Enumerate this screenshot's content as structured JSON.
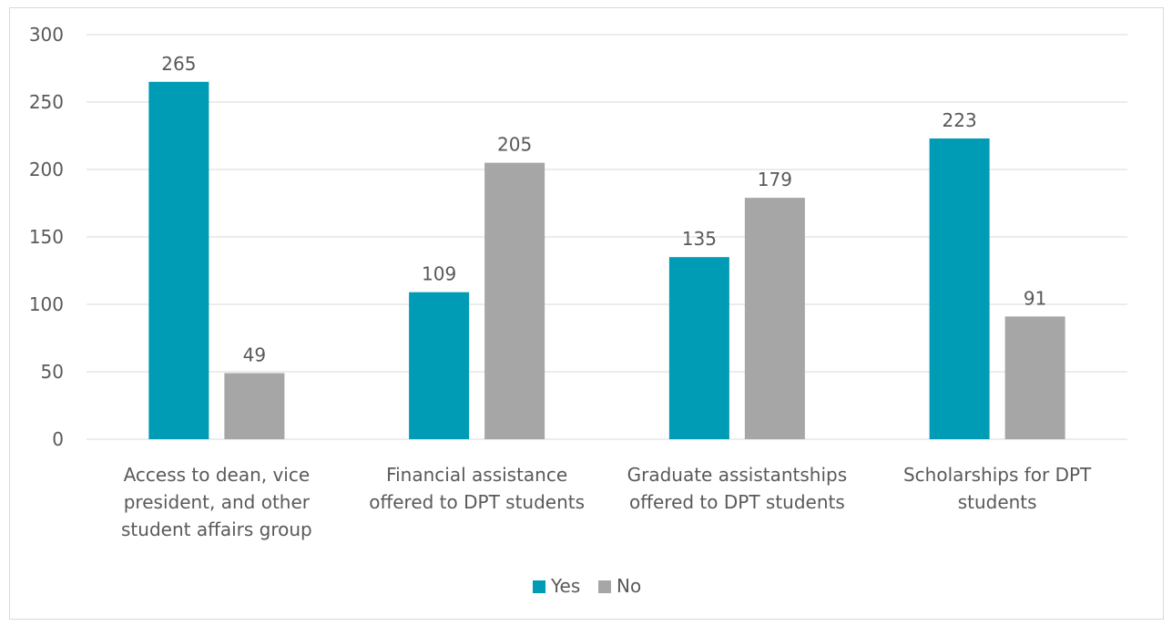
{
  "chart_data": {
    "type": "bar",
    "title": "",
    "xlabel": "",
    "ylabel": "",
    "ylim": [
      0,
      300
    ],
    "yticks": [
      0,
      50,
      100,
      150,
      200,
      250,
      300
    ],
    "grid": true,
    "legend_position": "bottom",
    "categories": [
      [
        "Access to dean, vice",
        "president, and other",
        "student affairs group"
      ],
      [
        "Financial assistance",
        "offered to DPT students"
      ],
      [
        "Graduate assistantships",
        "offered to DPT students"
      ],
      [
        "Scholarships for DPT",
        "students"
      ]
    ],
    "series": [
      {
        "name": "Yes",
        "color": "#009bb4",
        "values": [
          265,
          109,
          135,
          223
        ]
      },
      {
        "name": "No",
        "color": "#a6a6a6",
        "values": [
          49,
          205,
          179,
          91
        ]
      }
    ]
  }
}
